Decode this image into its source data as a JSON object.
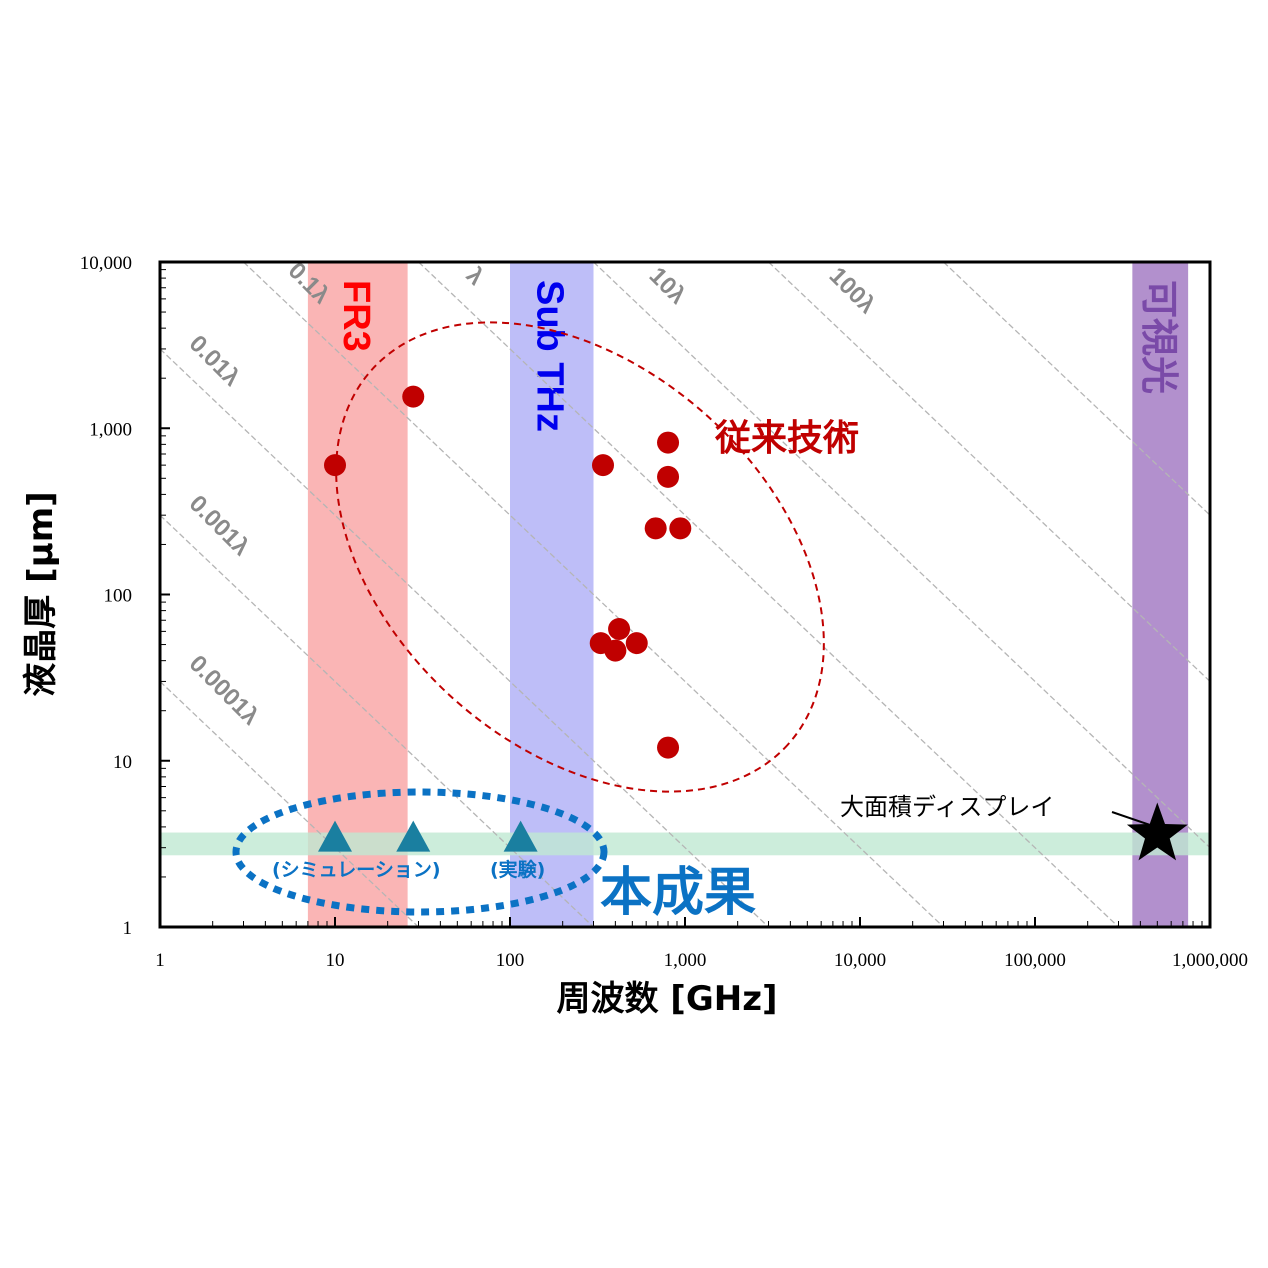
{
  "chart_data": {
    "type": "scatter",
    "xlabel": "周波数 [GHz]",
    "ylabel": "液晶厚 [μm]",
    "xscale": "log",
    "yscale": "log",
    "xlim": [
      1,
      1000000
    ],
    "ylim": [
      1,
      10000
    ],
    "grid": false,
    "x_tick_labels": [
      "1",
      "10",
      "100",
      "1,000",
      "10,000",
      "100,000",
      "1,000,000"
    ],
    "x_tick_values": [
      1,
      10,
      100,
      1000,
      10000,
      100000,
      1000000
    ],
    "y_tick_labels": [
      "1",
      "10",
      "100",
      "1,000",
      "10,000"
    ],
    "y_tick_values": [
      1,
      10,
      100,
      1000,
      10000
    ],
    "bands": [
      {
        "label": "FR3",
        "x_range": [
          7,
          26
        ],
        "color": "#f9a8a8",
        "text_color": "#ff0000"
      },
      {
        "label": "Sub THz",
        "x_range": [
          100,
          300
        ],
        "color": "#b3b3f7",
        "text_color": "#0000ee"
      },
      {
        "label": "可視光",
        "x_range": [
          360000,
          750000
        ],
        "color": "#a57cc4",
        "text_color": "#7a4aa8"
      }
    ],
    "horizontal_band": {
      "y_range": [
        2.7,
        3.7
      ],
      "color": "#bfe8d2"
    },
    "wavelength_lines": [
      {
        "label": "0.0001λ",
        "k": 0.0001
      },
      {
        "label": "0.001λ",
        "k": 0.001
      },
      {
        "label": "0.01λ",
        "k": 0.01
      },
      {
        "label": "0.1λ",
        "k": 0.1
      },
      {
        "label": "λ",
        "k": 1
      },
      {
        "label": "10λ",
        "k": 10
      },
      {
        "label": "100λ",
        "k": 100
      },
      {
        "label": "",
        "k": 1000
      }
    ],
    "series": [
      {
        "name": "従来技術",
        "marker": "circle",
        "color": "#c00000",
        "points": [
          [
            10,
            600
          ],
          [
            28,
            1550
          ],
          [
            340,
            600
          ],
          [
            800,
            820
          ],
          [
            800,
            510
          ],
          [
            680,
            250
          ],
          [
            940,
            250
          ],
          [
            330,
            51
          ],
          [
            420,
            62
          ],
          [
            400,
            46
          ],
          [
            530,
            51
          ],
          [
            800,
            12
          ]
        ]
      },
      {
        "name": "本成果",
        "marker": "triangle",
        "color": "#1a7fa0",
        "points": [
          [
            10,
            3.4
          ],
          [
            28,
            3.4
          ],
          [
            115,
            3.4
          ]
        ],
        "annotations": [
          "(シミュレーション)",
          "(実験)"
        ]
      },
      {
        "name": "大面積ディスプレイ",
        "marker": "star",
        "color": "#000000",
        "points": [
          [
            500000,
            3.6
          ]
        ]
      }
    ]
  }
}
